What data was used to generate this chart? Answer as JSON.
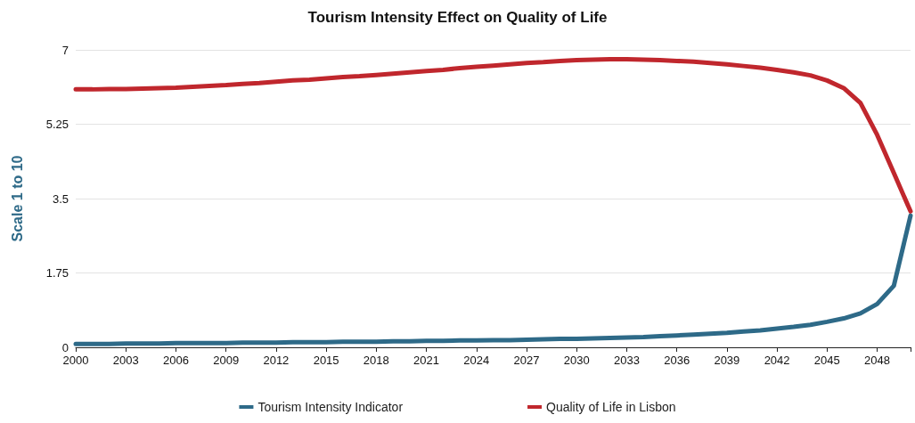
{
  "chart_data": {
    "type": "line",
    "title": "Tourism Intensity Effect on Quality of Life",
    "ylabel": "Scale 1 to 10",
    "categories": [
      "2000",
      null,
      null,
      "2003",
      null,
      null,
      "2006",
      null,
      null,
      "2009",
      null,
      null,
      "2012",
      null,
      null,
      "2015",
      null,
      null,
      "2018",
      null,
      null,
      "2021",
      null,
      null,
      "2024",
      null,
      null,
      "2027",
      null,
      null,
      "2030",
      null,
      null,
      "2033",
      null,
      null,
      "2036",
      null,
      null,
      "2039",
      null,
      null,
      "2042",
      null,
      null,
      "2045",
      null,
      null,
      "2048",
      null,
      null
    ],
    "series": [
      {
        "name": "Tourism Intensity Indicator",
        "color": "#2e6a88",
        "values": [
          0.08,
          0.08,
          0.08,
          0.09,
          0.09,
          0.09,
          0.1,
          0.1,
          0.1,
          0.1,
          0.11,
          0.11,
          0.11,
          0.12,
          0.12,
          0.12,
          0.13,
          0.13,
          0.13,
          0.14,
          0.14,
          0.15,
          0.15,
          0.16,
          0.16,
          0.17,
          0.17,
          0.18,
          0.19,
          0.2,
          0.2,
          0.21,
          0.22,
          0.23,
          0.24,
          0.26,
          0.28,
          0.3,
          0.32,
          0.34,
          0.37,
          0.4,
          0.44,
          0.48,
          0.53,
          0.6,
          0.68,
          0.8,
          1.02,
          1.45,
          3.1
        ]
      },
      {
        "name": "Quality of Life in Lisbon",
        "color": "#c0272d",
        "values": [
          6.07,
          6.07,
          6.08,
          6.08,
          6.09,
          6.1,
          6.11,
          6.13,
          6.15,
          6.17,
          6.2,
          6.22,
          6.25,
          6.28,
          6.3,
          6.33,
          6.36,
          6.38,
          6.41,
          6.44,
          6.47,
          6.5,
          6.53,
          6.57,
          6.6,
          6.63,
          6.66,
          6.69,
          6.71,
          6.74,
          6.76,
          6.77,
          6.78,
          6.78,
          6.77,
          6.76,
          6.74,
          6.72,
          6.69,
          6.66,
          6.62,
          6.58,
          6.53,
          6.47,
          6.4,
          6.28,
          6.1,
          5.75,
          5.0,
          4.1,
          3.2
        ]
      }
    ],
    "ylim": [
      0,
      7
    ],
    "yticks": [
      0,
      1.75,
      3.5,
      5.25,
      7
    ],
    "grid": "y",
    "legend": "bottom",
    "marker": "none",
    "line_style": "solid"
  }
}
